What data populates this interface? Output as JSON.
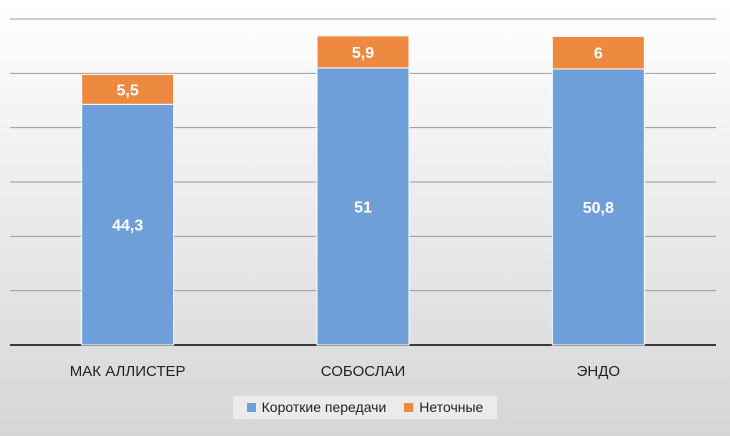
{
  "chart_data": {
    "type": "bar",
    "stacked": true,
    "categories": [
      "МАК АЛЛИСТЕР",
      "СОБОСЛАИ",
      "ЭНДО"
    ],
    "series": [
      {
        "name": "Короткие передачи",
        "values": [
          44.3,
          51,
          50.8
        ],
        "labels": [
          "44,3",
          "51",
          "50,8"
        ],
        "color": "#6f9fd8"
      },
      {
        "name": "Неточные",
        "values": [
          5.5,
          5.9,
          6
        ],
        "labels": [
          "5,5",
          "5,9",
          "6"
        ],
        "color": "#ed8a3f"
      }
    ],
    "title": "",
    "xlabel": "",
    "ylabel": "",
    "ylim": [
      0,
      60
    ],
    "gridlines": true,
    "legend": "bottom-center",
    "background": "gradient-gray"
  }
}
